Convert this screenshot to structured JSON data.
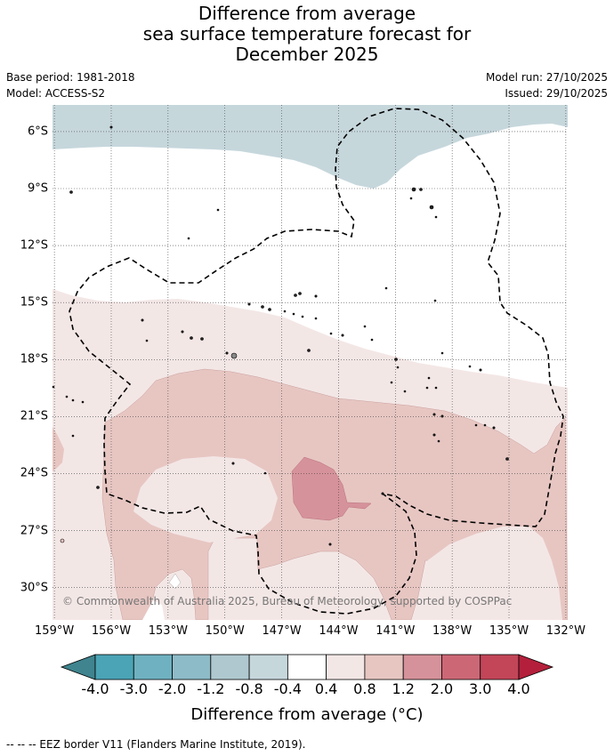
{
  "title": {
    "line1": "Difference from average",
    "line2": "sea surface temperature forecast for",
    "line3": "December 2025"
  },
  "meta": {
    "base_period": "Base period: 1981-2018",
    "model": "Model: ACCESS-S2",
    "model_run": "Model run: 27/10/2025",
    "issued": "Issued: 29/10/2025"
  },
  "axes": {
    "lat_labels": [
      "6°S",
      "9°S",
      "12°S",
      "15°S",
      "18°S",
      "21°S",
      "24°S",
      "27°S",
      "30°S"
    ],
    "lat_values": [
      -6,
      -9,
      -12,
      -15,
      -18,
      -21,
      -24,
      -27,
      -30
    ],
    "lon_labels": [
      "159°W",
      "156°W",
      "153°W",
      "150°W",
      "147°W",
      "144°W",
      "141°W",
      "138°W",
      "135°W",
      "132°W"
    ],
    "lon_values": [
      -159,
      -156,
      -153,
      -150,
      -147,
      -144,
      -141,
      -138,
      -135,
      -132
    ],
    "lat_range": [
      -31.7,
      -4.6
    ],
    "lon_range": [
      -159.1,
      -131.9
    ]
  },
  "copyright": "© Commonwealth of Australia 2025, Bureau of Meteorology, supported by COSPPac",
  "colorbar": {
    "labels": [
      "-4.0",
      "-3.0",
      "-2.0",
      "-1.2",
      "-0.8",
      "-0.4",
      "0.4",
      "0.8",
      "1.2",
      "2.0",
      "3.0",
      "4.0"
    ],
    "colors": [
      "#3f848e",
      "#4aa4b5",
      "#6fb1c0",
      "#8dbbc7",
      "#afc8cf",
      "#c6d7dc",
      "#ffffff",
      "#f3e7e6",
      "#e7c6c2",
      "#d6929a",
      "#cc6776",
      "#c24558",
      "#b4203b"
    ],
    "title": "Difference from average (°C)"
  },
  "legend_note": "-- -- -- EEZ border V11 (Flanders Marine Institute, 2019).",
  "colors": {
    "cool_region": "#c6d7dc",
    "warm_light": "#f3e7e6",
    "warm_mid": "#e7c6c2",
    "warm_strong": "#d6929a",
    "warm_stronger": "#cc6776"
  }
}
